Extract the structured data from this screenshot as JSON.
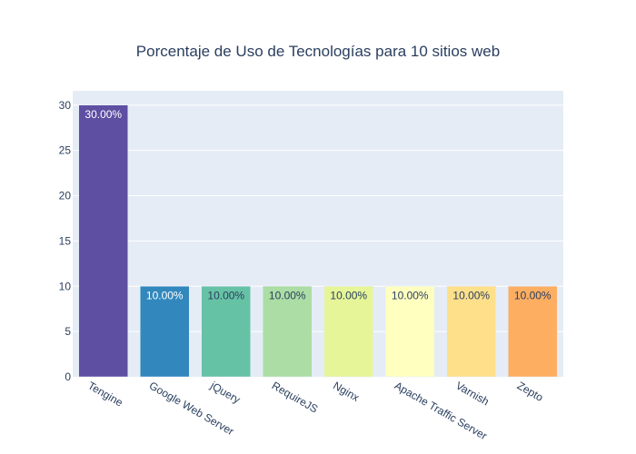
{
  "chart_data": {
    "type": "bar",
    "title": "Porcentaje de Uso de Tecnologías para 10 sitios web",
    "xlabel": "",
    "ylabel": "",
    "categories": [
      "Tengine",
      "Google Web Server",
      "jQuery",
      "RequireJS",
      "Nginx",
      "Apache Traffic Server",
      "Varnish",
      "Zepto"
    ],
    "values": [
      30,
      10,
      10,
      10,
      10,
      10,
      10,
      10
    ],
    "data_labels": [
      "30.00%",
      "10.00%",
      "10.00%",
      "10.00%",
      "10.00%",
      "10.00%",
      "10.00%",
      "10.00%"
    ],
    "colors": [
      "#5e4fa2",
      "#3288bd",
      "#66c2a5",
      "#abdda4",
      "#e6f598",
      "#ffffbf",
      "#fee08b",
      "#fdae61"
    ],
    "label_colors": [
      "#ffffff",
      "#ffffff",
      "#2a3f5f",
      "#2a3f5f",
      "#2a3f5f",
      "#2a3f5f",
      "#2a3f5f",
      "#2a3f5f"
    ],
    "ylim": [
      0,
      31.58
    ],
    "yticks": [
      0,
      5,
      10,
      15,
      20,
      25,
      30
    ],
    "grid": true,
    "plot_background": "#e5ecf6",
    "text_color": "#2a3f5f"
  }
}
